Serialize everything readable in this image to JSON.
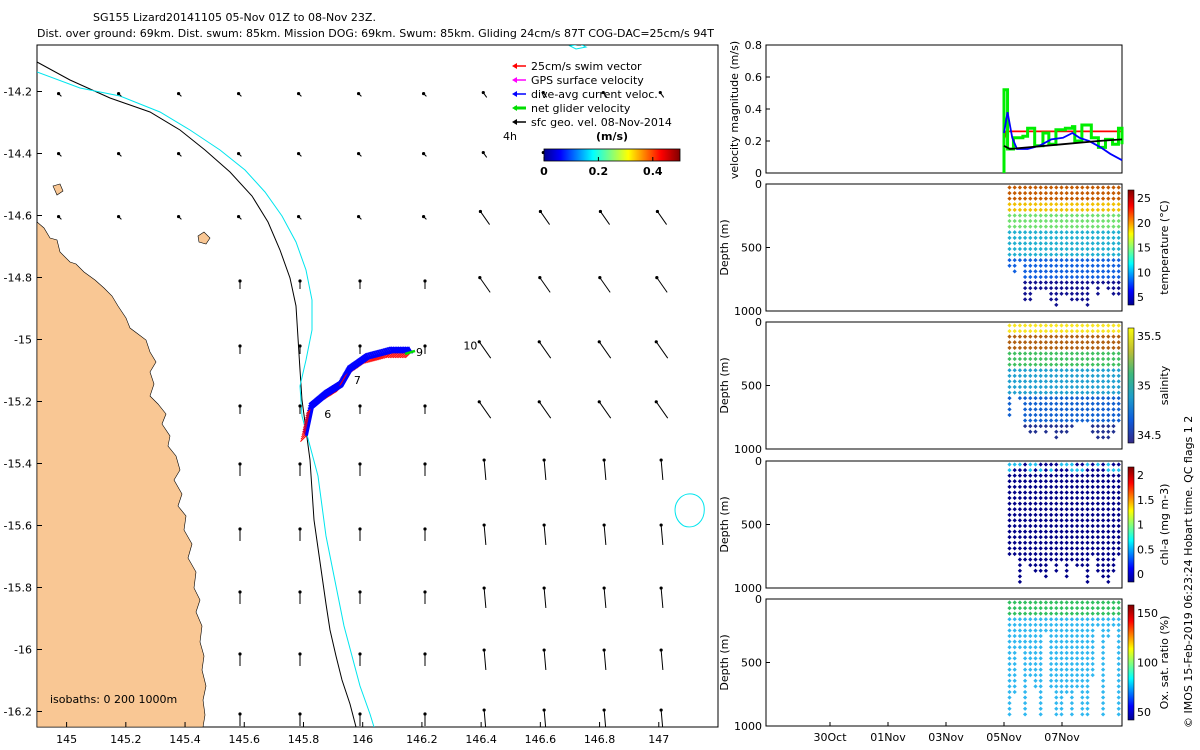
{
  "header": {
    "title": "SG155 Lizard20141105 05-Nov 01Z to 08-Nov 23Z.",
    "subtitle": "Dist. over ground: 69km. Dist. swum: 85km. Mission DOG: 69km. Swum: 85km. Gliding 24cm/s 87T COG-DAC=25cm/s 94T"
  },
  "footer": {
    "credit": "© IMOS 15-Feb-2019 06:23:24 Hobart time. QC flags 1  2"
  },
  "colors": {
    "land": "#f9c794",
    "isobath_200": "#000000",
    "isobath_1000": "#00e5ee",
    "swim": "#ff0000",
    "gps": "#ff00ff",
    "dac": "#0000ff",
    "net": "#00dd00",
    "sfc": "#000000"
  },
  "chart_data": [
    {
      "type": "map",
      "xticks": [
        "145",
        "145.2",
        "145.4",
        "145.6",
        "145.8",
        "146",
        "146.2",
        "146.4",
        "146.6",
        "146.8",
        "147"
      ],
      "yticks": [
        "-14.2",
        "-14.4",
        "-14.6",
        "-14.8",
        "-15",
        "-15.2",
        "-15.4",
        "-15.6",
        "-15.8",
        "-16",
        "-16.2"
      ],
      "xlim": [
        144.9,
        147.2
      ],
      "ylim": [
        -16.25,
        -14.05
      ],
      "legend": {
        "position": "top-right",
        "entries": [
          "25cm/s swim vector",
          "GPS surface velocity",
          "dive-avg current veloc.",
          "net glider velocity",
          "sfc geo. vel. 08-Nov-2014"
        ]
      },
      "legend_time": "4h",
      "colorbar": {
        "label": "(m/s)",
        "ticks": [
          "0",
          "0.2",
          "0.4"
        ],
        "range": [
          0,
          0.5
        ]
      },
      "isobaths_label": "isobaths: 0   200  1000m",
      "track_labels": [
        {
          "text": "6",
          "lon": 145.87,
          "lat": -15.24
        },
        {
          "text": "7",
          "lon": 145.97,
          "lat": -15.13
        },
        {
          "text": "9",
          "lon": 146.18,
          "lat": -15.04
        },
        {
          "text": "10",
          "lon": 146.34,
          "lat": -15.02
        }
      ],
      "track": [
        [
          145.81,
          -15.31
        ],
        [
          145.83,
          -15.22
        ],
        [
          145.88,
          -15.18
        ],
        [
          145.93,
          -15.15
        ],
        [
          145.96,
          -15.1
        ],
        [
          146.02,
          -15.06
        ],
        [
          146.1,
          -15.04
        ],
        [
          146.17,
          -15.04
        ]
      ]
    },
    {
      "type": "line",
      "ylabel": "velocity magnitude (m/s)",
      "ylim": [
        0,
        0.8
      ],
      "yticks": [
        "0",
        "0.2",
        "0.4",
        "0.6",
        "0.8"
      ],
      "series": [
        {
          "color": "red",
          "points": [
            [
              0,
              0.2
            ],
            [
              0.02,
              0.26
            ],
            [
              1,
              0.26
            ]
          ]
        },
        {
          "color": "green",
          "points": [
            [
              0,
              0.52
            ],
            [
              0.03,
              0.15
            ],
            [
              0.08,
              0.22
            ],
            [
              0.16,
              0.23
            ],
            [
              0.2,
              0.28
            ],
            [
              0.26,
              0.17
            ],
            [
              0.33,
              0.25
            ],
            [
              0.38,
              0.18
            ],
            [
              0.44,
              0.27
            ],
            [
              0.52,
              0.28
            ],
            [
              0.58,
              0.29
            ],
            [
              0.6,
              0.2
            ],
            [
              0.66,
              0.3
            ],
            [
              0.74,
              0.22
            ],
            [
              0.8,
              0.16
            ],
            [
              0.86,
              0.21
            ],
            [
              0.92,
              0.18
            ],
            [
              0.97,
              0.28
            ],
            [
              1,
              0.18
            ]
          ]
        },
        {
          "color": "blue",
          "points": [
            [
              0,
              0.25
            ],
            [
              0.03,
              0.38
            ],
            [
              0.07,
              0.22
            ],
            [
              0.11,
              0.15
            ],
            [
              0.2,
              0.15
            ],
            [
              0.3,
              0.17
            ],
            [
              0.4,
              0.21
            ],
            [
              0.5,
              0.22
            ],
            [
              0.58,
              0.25
            ],
            [
              0.64,
              0.22
            ],
            [
              0.72,
              0.2
            ],
            [
              0.82,
              0.16
            ],
            [
              0.9,
              0.12
            ],
            [
              1,
              0.08
            ]
          ]
        },
        {
          "color": "black",
          "points": [
            [
              0,
              0.17
            ],
            [
              0.05,
              0.15
            ],
            [
              0.2,
              0.16
            ],
            [
              0.5,
              0.18
            ],
            [
              0.8,
              0.2
            ],
            [
              1,
              0.21
            ]
          ]
        }
      ]
    },
    {
      "type": "scatter",
      "ylabel": "Depth (m)",
      "yticks": [
        "0",
        "500",
        "1000"
      ],
      "cbar_label": "temperature (°C)",
      "cbar_ticks": [
        "25",
        "20",
        "15",
        "10",
        "5"
      ]
    },
    {
      "type": "scatter",
      "ylabel": "Depth (m)",
      "yticks": [
        "0",
        "500",
        "1000"
      ],
      "cbar_label": "salinity",
      "cbar_ticks": [
        "35.5",
        "35",
        "34.5"
      ]
    },
    {
      "type": "scatter",
      "ylabel": "Depth (m)",
      "yticks": [
        "0",
        "500",
        "1000"
      ],
      "cbar_label": "chl-a (mg m-3)",
      "cbar_ticks": [
        "2",
        "1.5",
        "1",
        "0.5",
        "0"
      ]
    },
    {
      "type": "scatter",
      "ylabel": "Depth (m)",
      "yticks": [
        "0",
        "500",
        "1000"
      ],
      "cbar_label": "Ox. sat. ratio (%)",
      "cbar_ticks": [
        "150",
        "100",
        "50"
      ],
      "xticks": [
        "30Oct",
        "01Nov",
        "03Nov",
        "05Nov",
        "07Nov"
      ]
    }
  ]
}
